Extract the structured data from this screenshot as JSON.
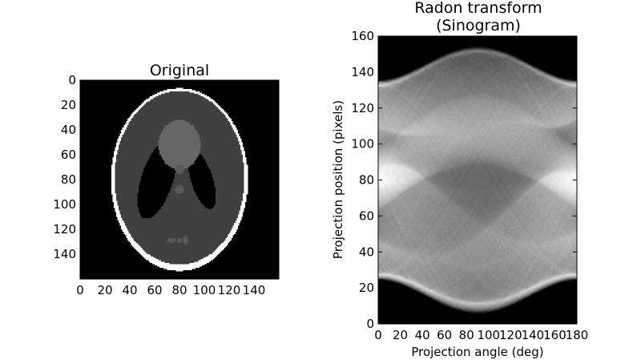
{
  "chart_data": [
    {
      "type": "heatmap",
      "title": "Original",
      "image_description": "Shepp-Logan phantom (grayscale)",
      "colormap": "gray",
      "xlim": [
        0,
        160
      ],
      "ylim": [
        160,
        0
      ],
      "x_ticks": [
        0,
        20,
        40,
        60,
        80,
        100,
        120,
        140
      ],
      "y_ticks": [
        0,
        20,
        40,
        60,
        80,
        100,
        120,
        140
      ],
      "phantom_ellipses": [
        {
          "value": 1.0,
          "cx": 80,
          "cy": 80,
          "rx": 55.2,
          "ry": 73.6
        },
        {
          "value": 0.25,
          "cx": 80,
          "cy": 78.5,
          "rx": 52.4,
          "ry": 69.9
        },
        {
          "value": 0.0,
          "cx": 98,
          "cy": 80,
          "rx": 8.8,
          "ry": 24.8,
          "angle_deg": -18
        },
        {
          "value": 0.0,
          "cx": 62,
          "cy": 80,
          "rx": 12.8,
          "ry": 32.8,
          "angle_deg": 18
        },
        {
          "value": 0.4,
          "cx": 80,
          "cy": 52,
          "rx": 16.8,
          "ry": 20.0
        },
        {
          "value": 0.35,
          "cx": 80,
          "cy": 72,
          "rx": 3.7,
          "ry": 3.7
        },
        {
          "value": 0.35,
          "cx": 80,
          "cy": 88,
          "rx": 3.7,
          "ry": 3.7
        },
        {
          "value": 0.35,
          "cx": 73.6,
          "cy": 128.8,
          "rx": 3.7,
          "ry": 1.8
        },
        {
          "value": 0.35,
          "cx": 80,
          "cy": 129,
          "rx": 1.8,
          "ry": 1.8
        },
        {
          "value": 0.35,
          "cx": 84.8,
          "cy": 128.8,
          "rx": 1.8,
          "ry": 3.7
        }
      ]
    },
    {
      "type": "heatmap",
      "title": "Radon transform\n(Sinogram)",
      "title_lines": [
        "Radon transform",
        "(Sinogram)"
      ],
      "xlabel": "Projection angle (deg)",
      "ylabel": "Projection position (pixels)",
      "colormap": "gray",
      "xlim": [
        0,
        180
      ],
      "ylim": [
        0,
        160
      ],
      "x_ticks": [
        0,
        20,
        40,
        60,
        80,
        100,
        120,
        140,
        160,
        180
      ],
      "y_ticks": [
        0,
        20,
        40,
        60,
        80,
        100,
        120,
        140,
        160
      ],
      "description": "Sinogram of the phantom: projection intensity vs angle (0-180 deg) and detector position (0-160 px)"
    }
  ]
}
